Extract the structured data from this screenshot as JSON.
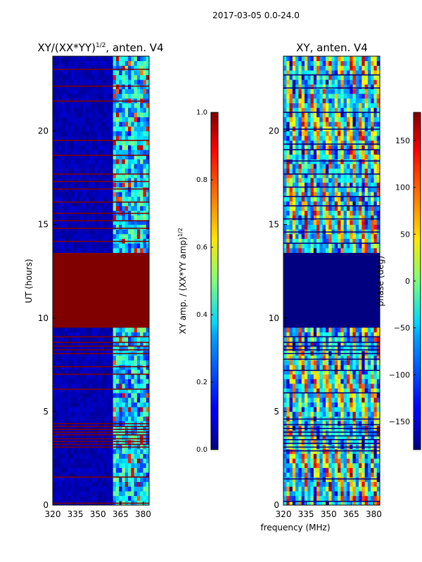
{
  "figure_title": "2017-03-05 0.0-24.0",
  "chart_data": [
    {
      "type": "heatmap",
      "title": "XY/(XX*YY)^1/2, anten. V4",
      "title_main": "XY/(XX*YY)",
      "title_exp": "1/2",
      "title_tail": ", anten. V4",
      "xlabel": "frequency (MHz)",
      "ylabel": "UT (hours)",
      "xlim": [
        320,
        384
      ],
      "ylim": [
        0,
        24
      ],
      "xticks": [
        320,
        335,
        350,
        365,
        380
      ],
      "yticks": [
        0,
        5,
        10,
        15,
        20
      ],
      "colorbar": {
        "label": "XY amp. / (XX*YY amp)^1/2",
        "label_main": "XY amp. / (XX*YY amp)",
        "label_exp": "1/2",
        "range": [
          0.0,
          1.0
        ],
        "ticks": [
          "0.0",
          "0.2",
          "0.4",
          "0.6",
          "0.8",
          "1.0"
        ],
        "colormap": "jet"
      },
      "background_value": 0.05,
      "active_band_mhz": [
        361,
        383
      ],
      "active_level": 0.35,
      "saturated_ut_blocks": [
        [
          9.6,
          13.6
        ]
      ],
      "saturated_value": 1.0,
      "flagged_rows_ut": [
        0.1,
        1.5,
        3.1,
        3.25,
        3.4,
        3.55,
        3.75,
        3.9,
        4.05,
        4.2,
        4.35,
        6.2,
        7.0,
        7.4,
        8.1,
        8.3,
        8.5,
        8.7,
        9.0,
        14.1,
        14.8,
        15.2,
        15.6,
        16.2,
        16.9,
        17.3,
        17.7,
        18.7,
        19.5,
        21.6,
        22.4,
        23.3
      ]
    },
    {
      "type": "heatmap",
      "title": "XY, anten. V4",
      "xlim": [
        320,
        384
      ],
      "ylim": [
        0,
        24
      ],
      "xticks": [
        320,
        335,
        350,
        365,
        380
      ],
      "yticks": [
        0,
        5,
        10,
        15,
        20
      ],
      "colorbar": {
        "label": "phase (deg)",
        "range": [
          -180,
          180
        ],
        "ticks": [
          "-150",
          "-100",
          "-50",
          "0",
          "50",
          "100",
          "150"
        ],
        "tick_values": [
          -150,
          -100,
          -50,
          0,
          50,
          100,
          150
        ],
        "colormap": "jet"
      },
      "blank_ut_blocks": [
        [
          9.6,
          13.6
        ]
      ],
      "blank_value": -180,
      "flagged_rows_ut": [
        0.2,
        1.4,
        2.9,
        3.1,
        3.3,
        3.5,
        3.7,
        3.9,
        4.1,
        4.3,
        4.6,
        6.0,
        7.2,
        7.8,
        8.1,
        8.3,
        8.5,
        8.7,
        9.0,
        14.0,
        14.6,
        15.3,
        16.0,
        16.5,
        17.0,
        17.7,
        18.4,
        19.0,
        19.3,
        20.1,
        21.0,
        22.3,
        23.0
      ]
    }
  ]
}
